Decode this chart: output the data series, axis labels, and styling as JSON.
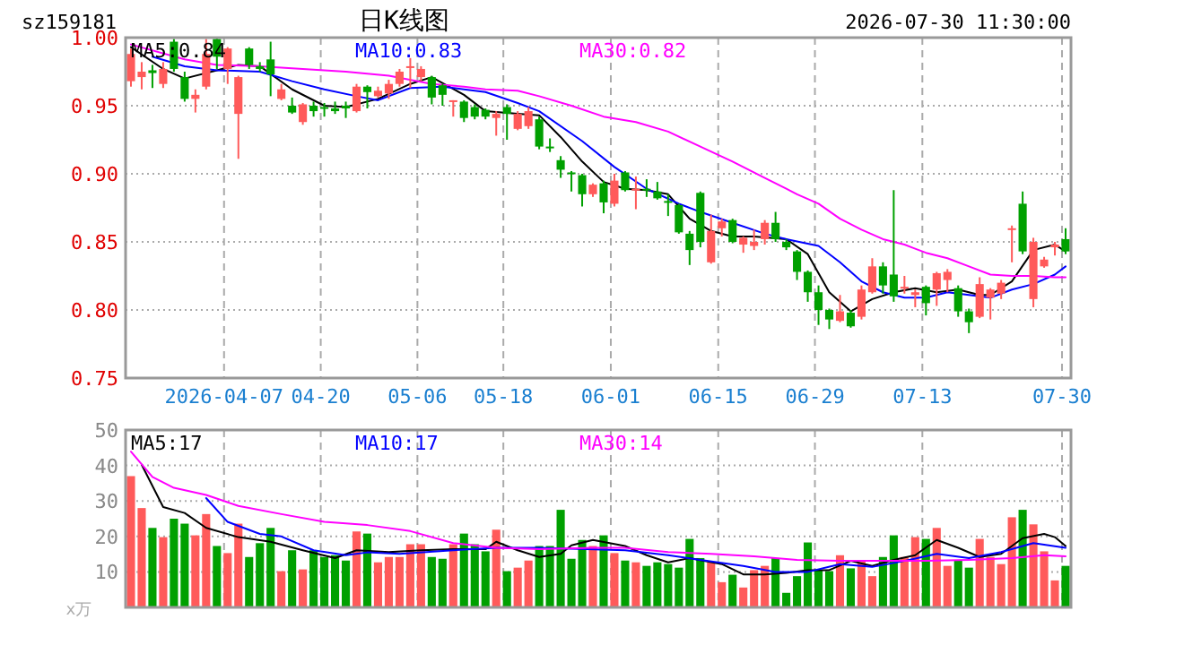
{
  "chart_data": [
    {
      "type": "candlestick",
      "title": "日K线图",
      "subtitle": "2026-07-30 11:30:00",
      "annotations": [
        "sz159181"
      ],
      "categories": [
        null,
        null,
        null,
        null,
        null,
        null,
        null,
        null,
        null,
        "2026-04-07",
        null,
        null,
        null,
        null,
        null,
        null,
        null,
        null,
        "04-20",
        null,
        null,
        null,
        null,
        null,
        null,
        null,
        null,
        "05-06",
        null,
        null,
        null,
        null,
        null,
        null,
        null,
        "05-18",
        null,
        null,
        null,
        null,
        null,
        null,
        null,
        null,
        null,
        "06-01",
        null,
        null,
        null,
        null,
        null,
        null,
        null,
        null,
        null,
        "06-15",
        null,
        null,
        null,
        null,
        null,
        null,
        null,
        null,
        "06-29",
        null,
        null,
        null,
        null,
        null,
        null,
        null,
        null,
        null,
        "07-13",
        null,
        null,
        null,
        null,
        null,
        null,
        null,
        null,
        null,
        null,
        null,
        null,
        "07-30"
      ],
      "ohlc": [
        [
          0.968,
          0.992,
          0.964,
          0.988
        ],
        [
          0.971,
          0.982,
          0.962,
          0.975
        ],
        [
          0.976,
          0.98,
          0.963,
          0.974
        ],
        [
          0.966,
          0.982,
          0.963,
          0.977
        ],
        [
          0.997,
          0.999,
          0.975,
          0.977
        ],
        [
          0.971,
          0.975,
          0.953,
          0.955
        ],
        [
          0.955,
          0.962,
          0.945,
          0.958
        ],
        [
          0.964,
          0.999,
          0.962,
          0.988
        ],
        [
          0.999,
          1.0,
          0.977,
          0.986
        ],
        [
          0.977,
          0.993,
          0.966,
          0.992
        ],
        [
          0.944,
          0.972,
          0.911,
          0.971
        ],
        [
          0.992,
          0.993,
          0.977,
          0.98
        ],
        [
          0.979,
          0.982,
          0.975,
          0.977
        ],
        [
          0.984,
          0.997,
          0.957,
          0.973
        ],
        [
          0.955,
          0.966,
          0.954,
          0.962
        ],
        [
          0.95,
          0.956,
          0.944,
          0.945
        ],
        [
          0.938,
          0.952,
          0.936,
          0.951
        ],
        [
          0.95,
          0.953,
          0.942,
          0.946
        ],
        [
          0.949,
          0.952,
          0.942,
          0.948
        ],
        [
          0.948,
          0.953,
          0.944,
          0.946
        ],
        [
          0.95,
          0.953,
          0.941,
          0.948
        ],
        [
          0.946,
          0.966,
          0.945,
          0.964
        ],
        [
          0.964,
          0.965,
          0.948,
          0.96
        ],
        [
          0.957,
          0.964,
          0.956,
          0.961
        ],
        [
          0.959,
          0.969,
          0.955,
          0.966
        ],
        [
          0.966,
          0.977,
          0.964,
          0.975
        ],
        [
          0.978,
          0.985,
          0.963,
          0.979
        ],
        [
          0.971,
          0.979,
          0.968,
          0.977
        ],
        [
          0.971,
          0.972,
          0.951,
          0.956
        ],
        [
          0.965,
          0.966,
          0.95,
          0.958
        ],
        [
          0.953,
          0.954,
          0.942,
          0.954
        ],
        [
          0.953,
          0.954,
          0.938,
          0.941
        ],
        [
          0.949,
          0.951,
          0.94,
          0.942
        ],
        [
          0.947,
          0.948,
          0.94,
          0.942
        ],
        [
          0.941,
          0.946,
          0.928,
          0.944
        ],
        [
          0.949,
          0.951,
          0.925,
          0.944
        ],
        [
          0.933,
          0.946,
          0.932,
          0.944
        ],
        [
          0.935,
          0.949,
          0.933,
          0.946
        ],
        [
          0.94,
          0.942,
          0.918,
          0.92
        ],
        [
          0.92,
          0.926,
          0.916,
          0.919
        ],
        [
          0.91,
          0.913,
          0.897,
          0.903
        ],
        [
          0.901,
          0.902,
          0.887,
          0.9
        ],
        [
          0.899,
          0.9,
          0.876,
          0.885
        ],
        [
          0.885,
          0.893,
          0.883,
          0.892
        ],
        [
          0.893,
          0.895,
          0.871,
          0.879
        ],
        [
          0.878,
          0.9,
          0.876,
          0.895
        ],
        [
          0.901,
          0.902,
          0.887,
          0.888
        ],
        [
          0.888,
          0.898,
          0.874,
          0.889
        ],
        [
          0.889,
          0.896,
          0.883,
          0.888
        ],
        [
          0.887,
          0.894,
          0.881,
          0.882
        ],
        [
          0.88,
          0.885,
          0.869,
          0.879
        ],
        [
          0.877,
          0.878,
          0.856,
          0.857
        ],
        [
          0.856,
          0.858,
          0.833,
          0.844
        ],
        [
          0.886,
          0.887,
          0.846,
          0.85
        ],
        [
          0.835,
          0.87,
          0.834,
          0.858
        ],
        [
          0.86,
          0.867,
          0.854,
          0.865
        ],
        [
          0.866,
          0.867,
          0.849,
          0.85
        ],
        [
          0.848,
          0.854,
          0.842,
          0.853
        ],
        [
          0.847,
          0.859,
          0.844,
          0.85
        ],
        [
          0.852,
          0.866,
          0.848,
          0.864
        ],
        [
          0.864,
          0.872,
          0.85,
          0.852
        ],
        [
          0.85,
          0.852,
          0.844,
          0.846
        ],
        [
          0.843,
          0.844,
          0.822,
          0.828
        ],
        [
          0.828,
          0.829,
          0.806,
          0.813
        ],
        [
          0.813,
          0.818,
          0.789,
          0.8
        ],
        [
          0.8,
          0.801,
          0.786,
          0.793
        ],
        [
          0.792,
          0.811,
          0.791,
          0.799
        ],
        [
          0.798,
          0.8,
          0.787,
          0.788
        ],
        [
          0.795,
          0.818,
          0.793,
          0.815
        ],
        [
          0.813,
          0.838,
          0.812,
          0.832
        ],
        [
          0.832,
          0.835,
          0.812,
          0.818
        ],
        [
          0.826,
          0.888,
          0.806,
          0.81
        ],
        [
          0.816,
          0.825,
          0.812,
          0.817
        ],
        [
          0.811,
          0.815,
          0.802,
          0.813
        ],
        [
          0.817,
          0.818,
          0.796,
          0.805
        ],
        [
          0.815,
          0.828,
          0.803,
          0.827
        ],
        [
          0.822,
          0.83,
          0.813,
          0.828
        ],
        [
          0.816,
          0.818,
          0.795,
          0.799
        ],
        [
          0.799,
          0.801,
          0.783,
          0.791
        ],
        [
          0.795,
          0.824,
          0.794,
          0.819
        ],
        [
          0.809,
          0.816,
          0.793,
          0.815
        ],
        [
          0.812,
          0.822,
          0.808,
          0.82
        ],
        [
          0.859,
          0.862,
          0.835,
          0.86
        ],
        [
          0.878,
          0.887,
          0.841,
          0.843
        ],
        [
          0.808,
          0.853,
          0.802,
          0.85
        ],
        [
          0.832,
          0.839,
          0.831,
          0.837
        ],
        [
          0.846,
          0.85,
          0.84,
          0.848
        ],
        [
          0.852,
          0.86,
          0.841,
          0.843
        ]
      ],
      "series": [
        {
          "name": "MA5:0.84",
          "type": "line",
          "color": "#000000",
          "values": [
            0.993,
            null,
            null,
            0.977,
            null,
            0.97,
            null,
            null,
            0.976,
            null,
            0.98,
            null,
            0.979,
            null,
            null,
            0.962,
            null,
            null,
            0.95,
            null,
            0.949,
            null,
            null,
            0.955,
            null,
            null,
            0.966,
            null,
            0.971,
            null,
            null,
            0.958,
            null,
            0.946,
            null,
            null,
            0.944,
            null,
            0.943,
            null,
            0.927,
            null,
            0.909,
            null,
            0.894,
            null,
            0.889,
            null,
            0.888,
            null,
            0.885,
            null,
            0.867,
            null,
            0.858,
            null,
            0.854,
            null,
            0.854,
            null,
            null,
            0.852,
            null,
            0.841,
            null,
            0.813,
            null,
            0.799,
            null,
            0.808,
            null,
            0.813,
            null,
            0.816,
            null,
            0.813,
            null,
            0.815,
            null,
            0.811,
            0.811,
            null,
            0.821,
            null,
            0.844,
            null,
            0.848,
            0.843
          ]
        },
        {
          "name": "MA10:0.83",
          "type": "line",
          "color": "#0000ff",
          "values": [
            null,
            null,
            0.986,
            null,
            null,
            0.979,
            null,
            null,
            0.976,
            null,
            null,
            null,
            0.975,
            null,
            null,
            0.968,
            null,
            null,
            0.962,
            null,
            null,
            0.957,
            null,
            0.954,
            null,
            null,
            0.963,
            null,
            null,
            0.964,
            null,
            0.962,
            null,
            0.96,
            null,
            null,
            0.952,
            null,
            0.946,
            null,
            null,
            null,
            0.924,
            null,
            null,
            0.905,
            null,
            null,
            0.889,
            null,
            null,
            0.878,
            null,
            0.872,
            null,
            null,
            0.864,
            null,
            null,
            0.856,
            null,
            0.852,
            null,
            null,
            0.847,
            null,
            0.835,
            null,
            0.821,
            null,
            0.813,
            null,
            0.809,
            null,
            0.809,
            null,
            0.813,
            null,
            0.811,
            null,
            0.809,
            null,
            0.815,
            null,
            0.819,
            null,
            0.826,
            0.832
          ]
        },
        {
          "name": "MA30:0.82",
          "type": "line",
          "color": "#ff00ff",
          "values": [
            0.995,
            null,
            null,
            null,
            null,
            0.984,
            null,
            null,
            0.98,
            null,
            null,
            null,
            0.979,
            null,
            null,
            null,
            0.977,
            null,
            null,
            null,
            0.975,
            null,
            null,
            null,
            0.972,
            null,
            null,
            null,
            0.966,
            null,
            null,
            0.964,
            null,
            0.962,
            null,
            null,
            0.961,
            null,
            0.957,
            null,
            null,
            0.95,
            null,
            null,
            0.942,
            null,
            null,
            0.938,
            null,
            null,
            0.931,
            null,
            null,
            0.92,
            null,
            null,
            0.909,
            null,
            null,
            0.897,
            null,
            0.889,
            0.885,
            null,
            0.878,
            null,
            0.867,
            null,
            0.859,
            null,
            0.852,
            null,
            0.848,
            null,
            0.842,
            null,
            0.838,
            null,
            0.832,
            null,
            0.826,
            null,
            0.825,
            null,
            0.825,
            null,
            0.824,
            0.824
          ]
        }
      ],
      "ylim": [
        0.75,
        1.0
      ],
      "yticks": [
        {
          "value": 0.75,
          "label": "0.75"
        },
        {
          "value": 0.8,
          "label": "0.80"
        },
        {
          "value": 0.85,
          "label": "0.85"
        },
        {
          "value": 0.9,
          "label": "0.90"
        },
        {
          "value": 0.95,
          "label": "0.95"
        },
        {
          "value": 1.0,
          "label": "1.00"
        }
      ],
      "grid": true,
      "legend": "top"
    },
    {
      "type": "bar",
      "ylabel": "x万",
      "tick_labels": "y",
      "categories": [
        null,
        null,
        null,
        null,
        null,
        null,
        null,
        null,
        null,
        null,
        null,
        null,
        null,
        null,
        null,
        null,
        null,
        null,
        null,
        null,
        null,
        null,
        null,
        null,
        null,
        null,
        null,
        null,
        null,
        null,
        null,
        null,
        null,
        null,
        null,
        null,
        null,
        null,
        null,
        null,
        null,
        null,
        null,
        null,
        null,
        null,
        null,
        null,
        null,
        null,
        null,
        null,
        null,
        null,
        null,
        null,
        null,
        null,
        null,
        null,
        null,
        null,
        null,
        null,
        null,
        null,
        null,
        null,
        null,
        null,
        null,
        null,
        null,
        null,
        null,
        null,
        null,
        null,
        null,
        null,
        null,
        null,
        null,
        null,
        null,
        null,
        null,
        null
      ],
      "series": [
        {
          "type": "bar",
          "values": [
            37,
            28,
            22.4,
            19.8,
            25,
            23.6,
            20.3,
            26.3,
            17.3,
            15.3,
            23.6,
            14.2,
            18.1,
            22.4,
            10.2,
            16.1,
            10.7,
            16.1,
            14.2,
            14.7,
            13.2,
            21.4,
            20.8,
            12.7,
            14.2,
            14.2,
            17.8,
            17.8,
            14.2,
            13.7,
            17.8,
            20.8,
            17.8,
            15.8,
            21.9,
            10.2,
            11.2,
            13.2,
            17.3,
            17.3,
            27.5,
            13.7,
            19.0,
            17.3,
            20.3,
            15.3,
            13.2,
            12.7,
            11.7,
            12.7,
            12.2,
            11.2,
            19.3,
            13.9,
            12.7,
            7.1,
            9.2,
            5.6,
            10.5,
            11.7,
            13.9,
            4.1,
            8.8,
            18.3,
            10.5,
            10.2,
            14.7,
            11.0,
            13.2,
            8.8,
            14.2,
            20.3,
            14.2,
            19.8,
            19.3,
            22.4,
            11.7,
            13.2,
            11.2,
            19.3,
            14.2,
            12.2,
            25.4,
            27.5,
            23.4,
            15.8,
            7.6,
            11.7
          ],
          "colors": [
            "#ff5a5a",
            "#ff5a5a",
            "#00a000",
            "#ff5a5a",
            "#00a000",
            "#00a000",
            "#ff5a5a",
            "#ff5a5a",
            "#00a000",
            "#ff5a5a",
            "#ff5a5a",
            "#00a000",
            "#00a000",
            "#00a000",
            "#ff5a5a",
            "#00a000",
            "#ff5a5a",
            "#00a000",
            "#00a000",
            "#00a000",
            "#00a000",
            "#ff5a5a",
            "#00a000",
            "#ff5a5a",
            "#ff5a5a",
            "#ff5a5a",
            "#ff5a5a",
            "#ff5a5a",
            "#00a000",
            "#00a000",
            "#ff5a5a",
            "#00a000",
            "#00a000",
            "#00a000",
            "#ff5a5a",
            "#00a000",
            "#ff5a5a",
            "#ff5a5a",
            "#00a000",
            "#00a000",
            "#00a000",
            "#00a000",
            "#00a000",
            "#ff5a5a",
            "#00a000",
            "#ff5a5a",
            "#00a000",
            "#ff5a5a",
            "#00a000",
            "#00a000",
            "#00a000",
            "#00a000",
            "#00a000",
            "#00a000",
            "#ff5a5a",
            "#ff5a5a",
            "#00a000",
            "#ff5a5a",
            "#ff5a5a",
            "#ff5a5a",
            "#00a000",
            "#00a000",
            "#00a000",
            "#00a000",
            "#00a000",
            "#00a000",
            "#ff5a5a",
            "#00a000",
            "#ff5a5a",
            "#ff5a5a",
            "#00a000",
            "#00a000",
            "#ff5a5a",
            "#ff5a5a",
            "#00a000",
            "#ff5a5a",
            "#ff5a5a",
            "#00a000",
            "#00a000",
            "#ff5a5a",
            "#ff5a5a",
            "#ff5a5a",
            "#ff5a5a",
            "#00a000",
            "#ff5a5a",
            "#ff5a5a",
            "#ff5a5a",
            "#00a000"
          ]
        },
        {
          "name": "MA5:17",
          "type": "line",
          "color": "#000000",
          "values": [
            null,
            40.2,
            null,
            28.3,
            null,
            26.6,
            null,
            22.4,
            null,
            null,
            19.8,
            null,
            null,
            18.5,
            null,
            null,
            16.1,
            null,
            null,
            13.9,
            null,
            16.1,
            null,
            null,
            15.6,
            null,
            null,
            16.1,
            null,
            null,
            16.4,
            null,
            null,
            16.4,
            18.5,
            null,
            16.1,
            null,
            14.2,
            null,
            15.1,
            17.5,
            null,
            19.0,
            null,
            null,
            17.3,
            null,
            14.7,
            null,
            12.7,
            null,
            13.9,
            null,
            null,
            12.2,
            null,
            9.3,
            null,
            9.3,
            null,
            9.7,
            null,
            10.5,
            null,
            10.5,
            null,
            13.1,
            null,
            11.7,
            null,
            13.4,
            null,
            14.7,
            null,
            19.0,
            null,
            16.8,
            null,
            14.2,
            null,
            15.1,
            null,
            19.5,
            null,
            20.7,
            19.8,
            17.3
          ]
        },
        {
          "name": "MA10:17",
          "type": "line",
          "color": "#0000ff",
          "values": [
            null,
            null,
            null,
            null,
            null,
            null,
            null,
            30.8,
            null,
            24.1,
            null,
            null,
            20.7,
            null,
            20.0,
            null,
            null,
            16.1,
            null,
            null,
            14.7,
            null,
            15.5,
            null,
            null,
            15.1,
            null,
            null,
            null,
            null,
            16.1,
            null,
            null,
            null,
            16.8,
            null,
            null,
            null,
            16.8,
            null,
            null,
            null,
            null,
            null,
            null,
            null,
            16.1,
            null,
            null,
            null,
            14.7,
            null,
            null,
            13.4,
            null,
            null,
            null,
            11.7,
            null,
            null,
            10.0,
            null,
            null,
            10.0,
            null,
            null,
            12.2,
            null,
            null,
            11.4,
            null,
            null,
            13.1,
            null,
            null,
            15.1,
            null,
            null,
            13.9,
            null,
            null,
            15.6,
            null,
            null,
            18.1,
            null,
            null,
            16.8
          ]
        },
        {
          "name": "MA30:14",
          "type": "line",
          "color": "#ff00ff",
          "values": [
            43.9,
            null,
            36.8,
            null,
            33.7,
            null,
            null,
            31.7,
            null,
            null,
            28.6,
            null,
            null,
            null,
            26.3,
            null,
            null,
            null,
            24.1,
            null,
            null,
            null,
            23.2,
            null,
            null,
            null,
            21.5,
            null,
            null,
            null,
            18.1,
            null,
            null,
            null,
            16.8,
            null,
            null,
            null,
            16.4,
            null,
            null,
            null,
            null,
            16.8,
            null,
            null,
            16.8,
            null,
            null,
            null,
            15.6,
            null,
            null,
            null,
            15.1,
            null,
            null,
            null,
            14.4,
            null,
            null,
            null,
            13.4,
            null,
            null,
            null,
            13.1,
            null,
            null,
            null,
            13.1,
            null,
            null,
            null,
            13.1,
            null,
            null,
            null,
            13.4,
            null,
            null,
            null,
            13.9,
            null,
            null,
            14.7,
            null,
            14.4
          ]
        }
      ],
      "ylim": [
        0,
        50
      ],
      "yticks": [
        10,
        20,
        30,
        40,
        50
      ],
      "grid": true,
      "legend": "top"
    }
  ]
}
